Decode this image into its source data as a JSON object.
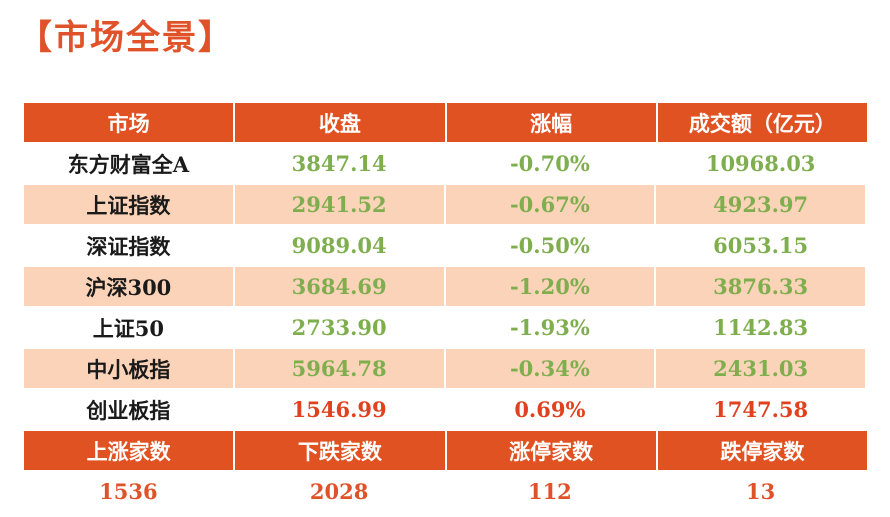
{
  "title": "【市场全景】",
  "table": {
    "headers": [
      "市场",
      "收盘",
      "涨幅",
      "成交额（亿元）"
    ],
    "rows": [
      {
        "name": "东方财富全A",
        "close": "3847.14",
        "change": "-0.70%",
        "volume": "10968.03",
        "trend": "down"
      },
      {
        "name": "上证指数",
        "close": "2941.52",
        "change": "-0.67%",
        "volume": "4923.97",
        "trend": "down"
      },
      {
        "name": "深证指数",
        "close": "9089.04",
        "change": "-0.50%",
        "volume": "6053.15",
        "trend": "down"
      },
      {
        "name": "沪深300",
        "close": "3684.69",
        "change": "-1.20%",
        "volume": "3876.33",
        "trend": "down"
      },
      {
        "name": "上证50",
        "close": "2733.90",
        "change": "-1.93%",
        "volume": "1142.83",
        "trend": "down"
      },
      {
        "name": "中小板指",
        "close": "5964.78",
        "change": "-0.34%",
        "volume": "2431.03",
        "trend": "down"
      },
      {
        "name": "创业板指",
        "close": "1546.99",
        "change": "0.69%",
        "volume": "1747.58",
        "trend": "up"
      }
    ]
  },
  "breadth": {
    "headers": [
      "上涨家数",
      "下跌家数",
      "涨停家数",
      "跌停家数"
    ],
    "values": [
      "1536",
      "2028",
      "112",
      "13"
    ]
  },
  "colors": {
    "header_bg": "#e15223",
    "shaded_row": "#fbd3b8",
    "up": "#e0411f",
    "down": "#7fae4e",
    "title": "#e0522a"
  }
}
